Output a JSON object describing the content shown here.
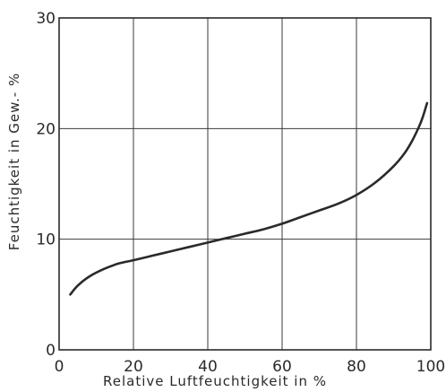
{
  "chart_data": {
    "type": "line",
    "title": "",
    "xlabel": "Relative  Luftfeuchtigkeit  in  %",
    "ylabel": "Feuchtigkeit  in  Gew.- %",
    "xlim": [
      0,
      100
    ],
    "ylim": [
      0,
      30
    ],
    "x_ticks": [
      0,
      20,
      40,
      60,
      80,
      100
    ],
    "y_ticks": [
      0,
      10,
      20,
      30
    ],
    "x_tick_labels": [
      "0",
      "20",
      "40",
      "60",
      "80",
      "100"
    ],
    "y_tick_labels": [
      "0",
      "10",
      "20",
      "30"
    ],
    "grid": true,
    "legend": "none",
    "line_color": "#2a2a2a",
    "series": [
      {
        "x": [
          3,
          5,
          8,
          12,
          16,
          20,
          25,
          30,
          35,
          40,
          45,
          50,
          55,
          60,
          65,
          70,
          75,
          80,
          85,
          90,
          93,
          95,
          97,
          98,
          99
        ],
        "y": [
          5.0,
          5.8,
          6.6,
          7.3,
          7.8,
          8.1,
          8.5,
          8.9,
          9.3,
          9.7,
          10.1,
          10.5,
          10.9,
          11.4,
          12.0,
          12.6,
          13.2,
          14.0,
          15.1,
          16.6,
          17.8,
          18.9,
          20.3,
          21.2,
          22.3
        ]
      }
    ]
  }
}
